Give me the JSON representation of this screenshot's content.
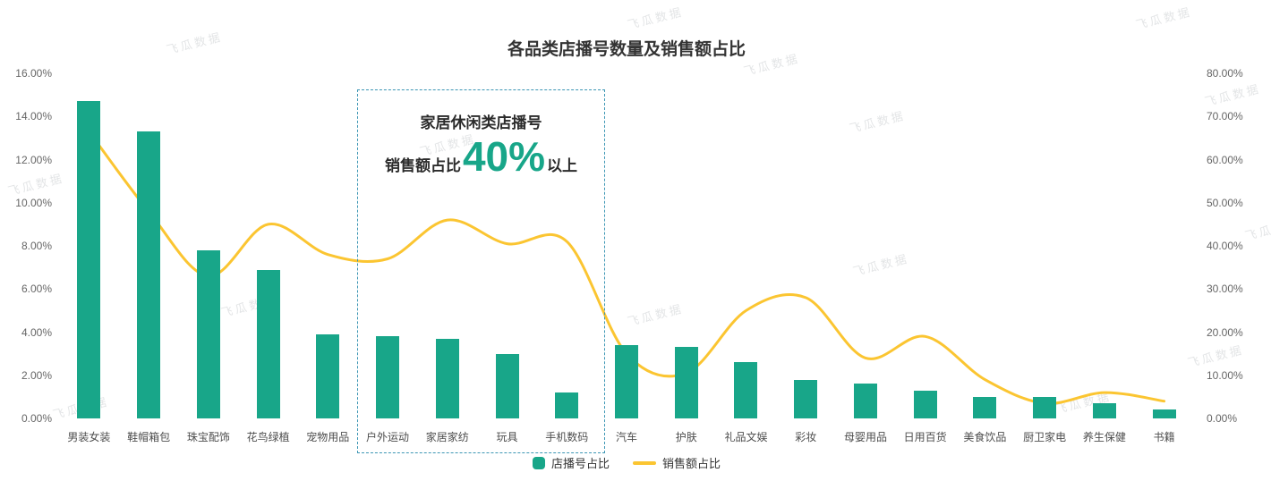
{
  "title": "各品类店播号数量及销售额占比",
  "watermark": {
    "text": "飞瓜数据"
  },
  "legend": [
    {
      "label": "店播号占比",
      "type": "bar",
      "color": "#18a689"
    },
    {
      "label": "销售额占比",
      "type": "line",
      "color": "#fbc531"
    }
  ],
  "annotation": {
    "line1": "家居休闲类店播号",
    "line2_prefix": "销售额占比",
    "line2_big": "40%",
    "line2_suffix": "以上",
    "box_color": "#3c96b4",
    "big_color": "#18a689"
  },
  "chart_data": {
    "type": "bar+line combo",
    "title": "各品类店播号数量及销售额占比",
    "categories": [
      "男装女装",
      "鞋帽箱包",
      "珠宝配饰",
      "花鸟绿植",
      "宠物用品",
      "户外运动",
      "家居家纺",
      "玩具",
      "手机数码",
      "汽车",
      "护肤",
      "礼品文娱",
      "彩妆",
      "母婴用品",
      "日用百货",
      "美食饮品",
      "厨卫家电",
      "养生保健",
      "书籍"
    ],
    "series": [
      {
        "name": "店播号占比",
        "type": "bar",
        "axis": "left",
        "color": "#18a689",
        "values": [
          14.7,
          13.3,
          7.8,
          6.9,
          3.9,
          3.8,
          3.7,
          3.0,
          1.2,
          3.4,
          3.3,
          2.6,
          1.8,
          1.6,
          1.3,
          1.0,
          1.0,
          0.7,
          0.4
        ]
      },
      {
        "name": "销售额占比",
        "type": "line",
        "axis": "right",
        "color": "#fbc531",
        "values": [
          66.5,
          48,
          33,
          45,
          38,
          37,
          46,
          40.5,
          41,
          15,
          10.5,
          25,
          28,
          14,
          19,
          9,
          3.5,
          6,
          4
        ]
      }
    ],
    "left_axis": {
      "min": 0,
      "max": 16,
      "step": 2,
      "format": "0.00%"
    },
    "right_axis": {
      "min": 0,
      "max": 80,
      "step": 10,
      "format": "0.00%"
    },
    "grid": false,
    "legend_position": "bottom",
    "annotation_span_categories": [
      "户外运动",
      "家居家纺",
      "玩具",
      "手机数码"
    ]
  }
}
